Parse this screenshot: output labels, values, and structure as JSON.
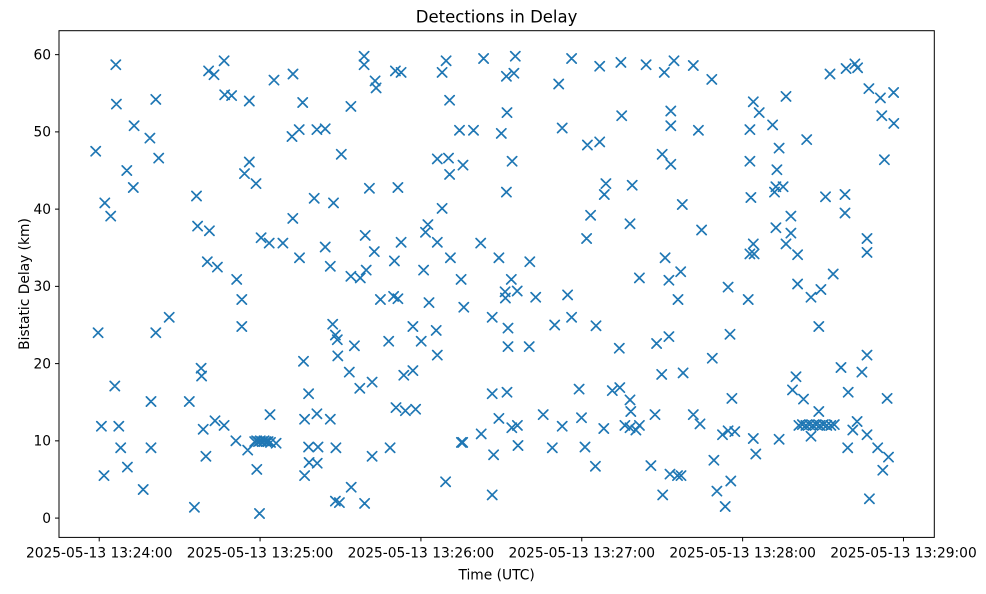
{
  "chart_data": {
    "type": "scatter",
    "title": "Detections in Delay",
    "xlabel": "Time (UTC)",
    "ylabel": "Bistatic Delay (km)",
    "marker": "x",
    "marker_color": "#1f77b4",
    "frame_color": "#000000",
    "background": "#ffffff",
    "legend": "none",
    "grid": false,
    "x_axis": {
      "unit": "seconds after 2025-05-13 13:24:00 UTC",
      "lim": [
        -15,
        311.5
      ],
      "ticks": [
        0,
        60,
        120,
        180,
        240,
        300
      ],
      "tick_labels": [
        "2025-05-13 13:24:00",
        "2025-05-13 13:25:00",
        "2025-05-13 13:26:00",
        "2025-05-13 13:27:00",
        "2025-05-13 13:28:00",
        "2025-05-13 13:29:00"
      ]
    },
    "y_axis": {
      "lim": [
        -2.5,
        63.1
      ],
      "ticks": [
        0,
        10,
        20,
        30,
        40,
        50,
        60
      ],
      "tick_labels": [
        "0",
        "10",
        "20",
        "30",
        "40",
        "50",
        "60"
      ]
    },
    "points": [
      [
        6.2,
        58.7
      ],
      [
        40.8,
        57.9
      ],
      [
        42.8,
        57.4
      ],
      [
        46.6,
        59.2
      ],
      [
        65.2,
        56.7
      ],
      [
        72.3,
        57.5
      ],
      [
        6.4,
        53.6
      ],
      [
        21.1,
        54.2
      ],
      [
        46.8,
        54.8
      ],
      [
        49.4,
        54.7
      ],
      [
        56,
        54
      ],
      [
        75.9,
        53.8
      ],
      [
        93.9,
        53.3
      ],
      [
        13,
        50.8
      ],
      [
        18.9,
        49.2
      ],
      [
        71.9,
        49.4
      ],
      [
        74.6,
        50.3
      ],
      [
        81.2,
        50.3
      ],
      [
        84.3,
        50.4
      ],
      [
        -1.3,
        47.5
      ],
      [
        90.3,
        47.1
      ],
      [
        22.2,
        46.6
      ],
      [
        56,
        46.1
      ],
      [
        54.2,
        44.6
      ],
      [
        58.5,
        43.3
      ],
      [
        10.3,
        45
      ],
      [
        12.7,
        42.8
      ],
      [
        36.3,
        41.7
      ],
      [
        80.2,
        41.4
      ],
      [
        87.4,
        40.8
      ],
      [
        98.8,
        59.8
      ],
      [
        98.8,
        58.7
      ],
      [
        102.9,
        56.6
      ],
      [
        103.3,
        55.7
      ],
      [
        110.5,
        57.9
      ],
      [
        112.6,
        57.7
      ],
      [
        129.4,
        59.2
      ],
      [
        127.9,
        57.7
      ],
      [
        130.7,
        54.1
      ],
      [
        143.4,
        59.5
      ],
      [
        155.2,
        59.8
      ],
      [
        151.9,
        57.2
      ],
      [
        154.7,
        57.6
      ],
      [
        176.2,
        59.5
      ],
      [
        171.4,
        56.2
      ],
      [
        186.7,
        58.5
      ],
      [
        194.6,
        59
      ],
      [
        204,
        58.7
      ],
      [
        210.8,
        57.7
      ],
      [
        152.1,
        52.5
      ],
      [
        194.9,
        52.1
      ],
      [
        134.4,
        50.2
      ],
      [
        139.6,
        50.2
      ],
      [
        150,
        49.8
      ],
      [
        172.7,
        50.5
      ],
      [
        182.1,
        48.3
      ],
      [
        186.7,
        48.7
      ],
      [
        210,
        47.1
      ],
      [
        126.1,
        46.5
      ],
      [
        130.3,
        46.6
      ],
      [
        135.7,
        45.7
      ],
      [
        130.7,
        44.5
      ],
      [
        154,
        46.2
      ],
      [
        100.8,
        42.7
      ],
      [
        111.4,
        42.8
      ],
      [
        151.9,
        42.2
      ],
      [
        189,
        43.3
      ],
      [
        188.4,
        41.9
      ],
      [
        198.8,
        43.1
      ],
      [
        213.2,
        52.7
      ],
      [
        213.2,
        50.8
      ],
      [
        213.2,
        45.8
      ],
      [
        214.4,
        59.2
      ],
      [
        221.6,
        58.6
      ],
      [
        228.5,
        56.8
      ],
      [
        272.6,
        57.5
      ],
      [
        278.6,
        58.2
      ],
      [
        281.9,
        58.8
      ],
      [
        282.9,
        58.3
      ],
      [
        287.1,
        55.6
      ],
      [
        291.4,
        54.4
      ],
      [
        296.3,
        55.1
      ],
      [
        244,
        53.9
      ],
      [
        256.2,
        54.6
      ],
      [
        246.2,
        52.5
      ],
      [
        223.5,
        50.2
      ],
      [
        242.7,
        50.3
      ],
      [
        251.2,
        50.9
      ],
      [
        291.9,
        52.1
      ],
      [
        296.4,
        51.1
      ],
      [
        263.9,
        49
      ],
      [
        253.6,
        47.9
      ],
      [
        242.7,
        46.2
      ],
      [
        252.8,
        45.1
      ],
      [
        292.9,
        46.4
      ],
      [
        252.4,
        42.9
      ],
      [
        255.1,
        42.9
      ],
      [
        251.9,
        42.2
      ],
      [
        243.1,
        41.5
      ],
      [
        270.9,
        41.6
      ],
      [
        278.2,
        41.9
      ],
      [
        2.1,
        40.8
      ],
      [
        4.3,
        39.1
      ],
      [
        36.7,
        37.8
      ],
      [
        41.1,
        37.2
      ],
      [
        60.4,
        36.3
      ],
      [
        63.4,
        35.6
      ],
      [
        68.5,
        35.6
      ],
      [
        72.2,
        38.8
      ],
      [
        74.7,
        33.7
      ],
      [
        84.3,
        35.1
      ],
      [
        86.2,
        32.6
      ],
      [
        93.9,
        31.3
      ],
      [
        97.4,
        31.1
      ],
      [
        40.3,
        33.2
      ],
      [
        44.1,
        32.5
      ],
      [
        51.3,
        30.9
      ],
      [
        53.2,
        28.3
      ],
      [
        26.1,
        26
      ],
      [
        -0.4,
        24
      ],
      [
        21.1,
        24
      ],
      [
        53.2,
        24.8
      ],
      [
        87.1,
        25.1
      ],
      [
        88.1,
        23.7
      ],
      [
        88.8,
        23.1
      ],
      [
        95.2,
        22.3
      ],
      [
        76.2,
        20.3
      ],
      [
        89,
        21
      ],
      [
        99.2,
        36.6
      ],
      [
        127.9,
        40.1
      ],
      [
        122.6,
        38
      ],
      [
        121.7,
        37
      ],
      [
        112.6,
        35.7
      ],
      [
        102.6,
        34.5
      ],
      [
        99.6,
        32.1
      ],
      [
        110.1,
        33.3
      ],
      [
        126.1,
        35.7
      ],
      [
        131,
        33.7
      ],
      [
        121,
        32.1
      ],
      [
        142.3,
        35.6
      ],
      [
        135,
        30.9
      ],
      [
        149.1,
        33.7
      ],
      [
        160.6,
        33.2
      ],
      [
        153.7,
        30.9
      ],
      [
        183.3,
        39.2
      ],
      [
        198,
        38.1
      ],
      [
        181.8,
        36.2
      ],
      [
        211.1,
        33.7
      ],
      [
        201.5,
        31.1
      ],
      [
        104.9,
        28.3
      ],
      [
        109.8,
        28.7
      ],
      [
        111.4,
        28.4
      ],
      [
        123,
        27.9
      ],
      [
        136,
        27.3
      ],
      [
        151.4,
        29.3
      ],
      [
        151.5,
        28.5
      ],
      [
        155.9,
        29.4
      ],
      [
        162.8,
        28.6
      ],
      [
        174.7,
        28.9
      ],
      [
        146.6,
        26
      ],
      [
        176.2,
        26
      ],
      [
        169.9,
        25
      ],
      [
        185.3,
        24.9
      ],
      [
        117,
        24.8
      ],
      [
        125.7,
        24.3
      ],
      [
        108,
        22.9
      ],
      [
        120.1,
        22.9
      ],
      [
        152.5,
        24.6
      ],
      [
        152.5,
        22.2
      ],
      [
        160.4,
        22.2
      ],
      [
        194,
        22
      ],
      [
        207.9,
        22.6
      ],
      [
        126.1,
        21.1
      ],
      [
        212.5,
        30.8
      ],
      [
        212.5,
        23.5
      ],
      [
        217.5,
        40.6
      ],
      [
        278.2,
        39.5
      ],
      [
        224.7,
        37.3
      ],
      [
        258,
        39.1
      ],
      [
        252.4,
        37.6
      ],
      [
        258,
        36.9
      ],
      [
        256.2,
        35.5
      ],
      [
        260.5,
        34.1
      ],
      [
        244,
        35.5
      ],
      [
        242.7,
        34.2
      ],
      [
        244.3,
        34.2
      ],
      [
        286.4,
        36.2
      ],
      [
        286.4,
        34.4
      ],
      [
        273.8,
        31.6
      ],
      [
        216.9,
        31.9
      ],
      [
        234.6,
        29.9
      ],
      [
        215.9,
        28.3
      ],
      [
        242.1,
        28.3
      ],
      [
        260.5,
        30.3
      ],
      [
        265.5,
        28.6
      ],
      [
        269.2,
        29.6
      ],
      [
        228.7,
        20.7
      ],
      [
        286.4,
        21.1
      ],
      [
        235.3,
        23.8
      ],
      [
        268.4,
        24.8
      ],
      [
        38,
        19.4
      ],
      [
        38.2,
        18.4
      ],
      [
        5.8,
        17.1
      ],
      [
        19.3,
        15.1
      ],
      [
        33.6,
        15.1
      ],
      [
        93.3,
        18.9
      ],
      [
        97.2,
        16.8
      ],
      [
        78.1,
        16.1
      ],
      [
        0.8,
        11.9
      ],
      [
        7.3,
        11.9
      ],
      [
        63.7,
        13.4
      ],
      [
        76.6,
        12.8
      ],
      [
        81.2,
        13.5
      ],
      [
        86.2,
        12.8
      ],
      [
        43.2,
        12.6
      ],
      [
        46.6,
        12
      ],
      [
        38.8,
        11.5
      ],
      [
        51,
        10
      ],
      [
        55.4,
        8.8
      ],
      [
        58,
        9.9
      ],
      [
        58.7,
        10
      ],
      [
        59.4,
        9.9
      ],
      [
        60.1,
        10
      ],
      [
        60.8,
        9.9
      ],
      [
        61.5,
        10
      ],
      [
        62.2,
        9.9
      ],
      [
        63,
        9.9
      ],
      [
        63.9,
        9.8
      ],
      [
        66,
        9.7
      ],
      [
        8,
        9.1
      ],
      [
        19.3,
        9.1
      ],
      [
        39.8,
        8
      ],
      [
        10.5,
        6.6
      ],
      [
        1.8,
        5.5
      ],
      [
        58.8,
        6.3
      ],
      [
        76.6,
        5.5
      ],
      [
        16.4,
        3.7
      ],
      [
        78.1,
        9.2
      ],
      [
        81.6,
        9.2
      ],
      [
        78.3,
        7.2
      ],
      [
        81.3,
        7.1
      ],
      [
        88.3,
        9.1
      ],
      [
        94,
        4
      ],
      [
        88.1,
        2.2
      ],
      [
        89.6,
        2
      ],
      [
        35.5,
        1.4
      ],
      [
        59.8,
        0.6
      ],
      [
        99,
        1.9
      ],
      [
        101.8,
        17.6
      ],
      [
        113.6,
        18.5
      ],
      [
        117,
        19.1
      ],
      [
        110.7,
        14.3
      ],
      [
        114.2,
        13.9
      ],
      [
        118,
        14.1
      ],
      [
        146.6,
        16.1
      ],
      [
        152.1,
        16.3
      ],
      [
        149.1,
        12.9
      ],
      [
        165.6,
        13.4
      ],
      [
        179,
        16.7
      ],
      [
        172.7,
        11.9
      ],
      [
        179.9,
        13
      ],
      [
        142.5,
        10.9
      ],
      [
        153.9,
        11.7
      ],
      [
        156,
        12
      ],
      [
        135.1,
        9.8
      ],
      [
        135.6,
        9.8
      ],
      [
        156.2,
        9.4
      ],
      [
        169,
        9.1
      ],
      [
        181.2,
        9.2
      ],
      [
        101.8,
        8
      ],
      [
        108.5,
        9.1
      ],
      [
        147.1,
        8.2
      ],
      [
        185.1,
        6.7
      ],
      [
        205.8,
        6.8
      ],
      [
        129.2,
        4.7
      ],
      [
        146.6,
        3
      ],
      [
        210.2,
        3
      ],
      [
        191.4,
        16.5
      ],
      [
        194.2,
        16.9
      ],
      [
        198,
        15.3
      ],
      [
        198.3,
        13.8
      ],
      [
        188.2,
        11.6
      ],
      [
        196.1,
        12
      ],
      [
        198,
        11.7
      ],
      [
        200.2,
        11.4
      ],
      [
        201.5,
        12
      ],
      [
        207.3,
        13.4
      ],
      [
        209.8,
        18.6
      ],
      [
        217.8,
        18.8
      ],
      [
        276.7,
        19.5
      ],
      [
        284.5,
        18.9
      ],
      [
        259.9,
        18.3
      ],
      [
        258.6,
        16.6
      ],
      [
        262.7,
        15.4
      ],
      [
        236,
        15.5
      ],
      [
        279.4,
        16.3
      ],
      [
        293.9,
        15.5
      ],
      [
        221.6,
        13.4
      ],
      [
        224.1,
        12.2
      ],
      [
        268.4,
        13.8
      ],
      [
        261,
        12
      ],
      [
        262.3,
        12.1
      ],
      [
        263.6,
        12
      ],
      [
        264.9,
        12.1
      ],
      [
        266.2,
        12
      ],
      [
        267.5,
        12.1
      ],
      [
        268.8,
        12
      ],
      [
        270.1,
        12.1
      ],
      [
        271.4,
        12
      ],
      [
        272.9,
        12
      ],
      [
        274.2,
        12.1
      ],
      [
        265.5,
        10.6
      ],
      [
        232.5,
        10.8
      ],
      [
        234.6,
        11.3
      ],
      [
        237.1,
        11.2
      ],
      [
        244,
        10.3
      ],
      [
        253.6,
        10.2
      ],
      [
        282.7,
        12.5
      ],
      [
        281.1,
        11.4
      ],
      [
        286.4,
        10.8
      ],
      [
        279.2,
        9.1
      ],
      [
        290.4,
        9.1
      ],
      [
        294.4,
        7.9
      ],
      [
        292.3,
        6.2
      ],
      [
        244.9,
        8.3
      ],
      [
        229.3,
        7.5
      ],
      [
        215.7,
        5.5
      ],
      [
        217,
        5.5
      ],
      [
        235.6,
        4.8
      ],
      [
        230.4,
        3.5
      ],
      [
        233.5,
        1.5
      ],
      [
        287.3,
        2.5
      ],
      [
        212.9,
        5.7
      ]
    ]
  }
}
